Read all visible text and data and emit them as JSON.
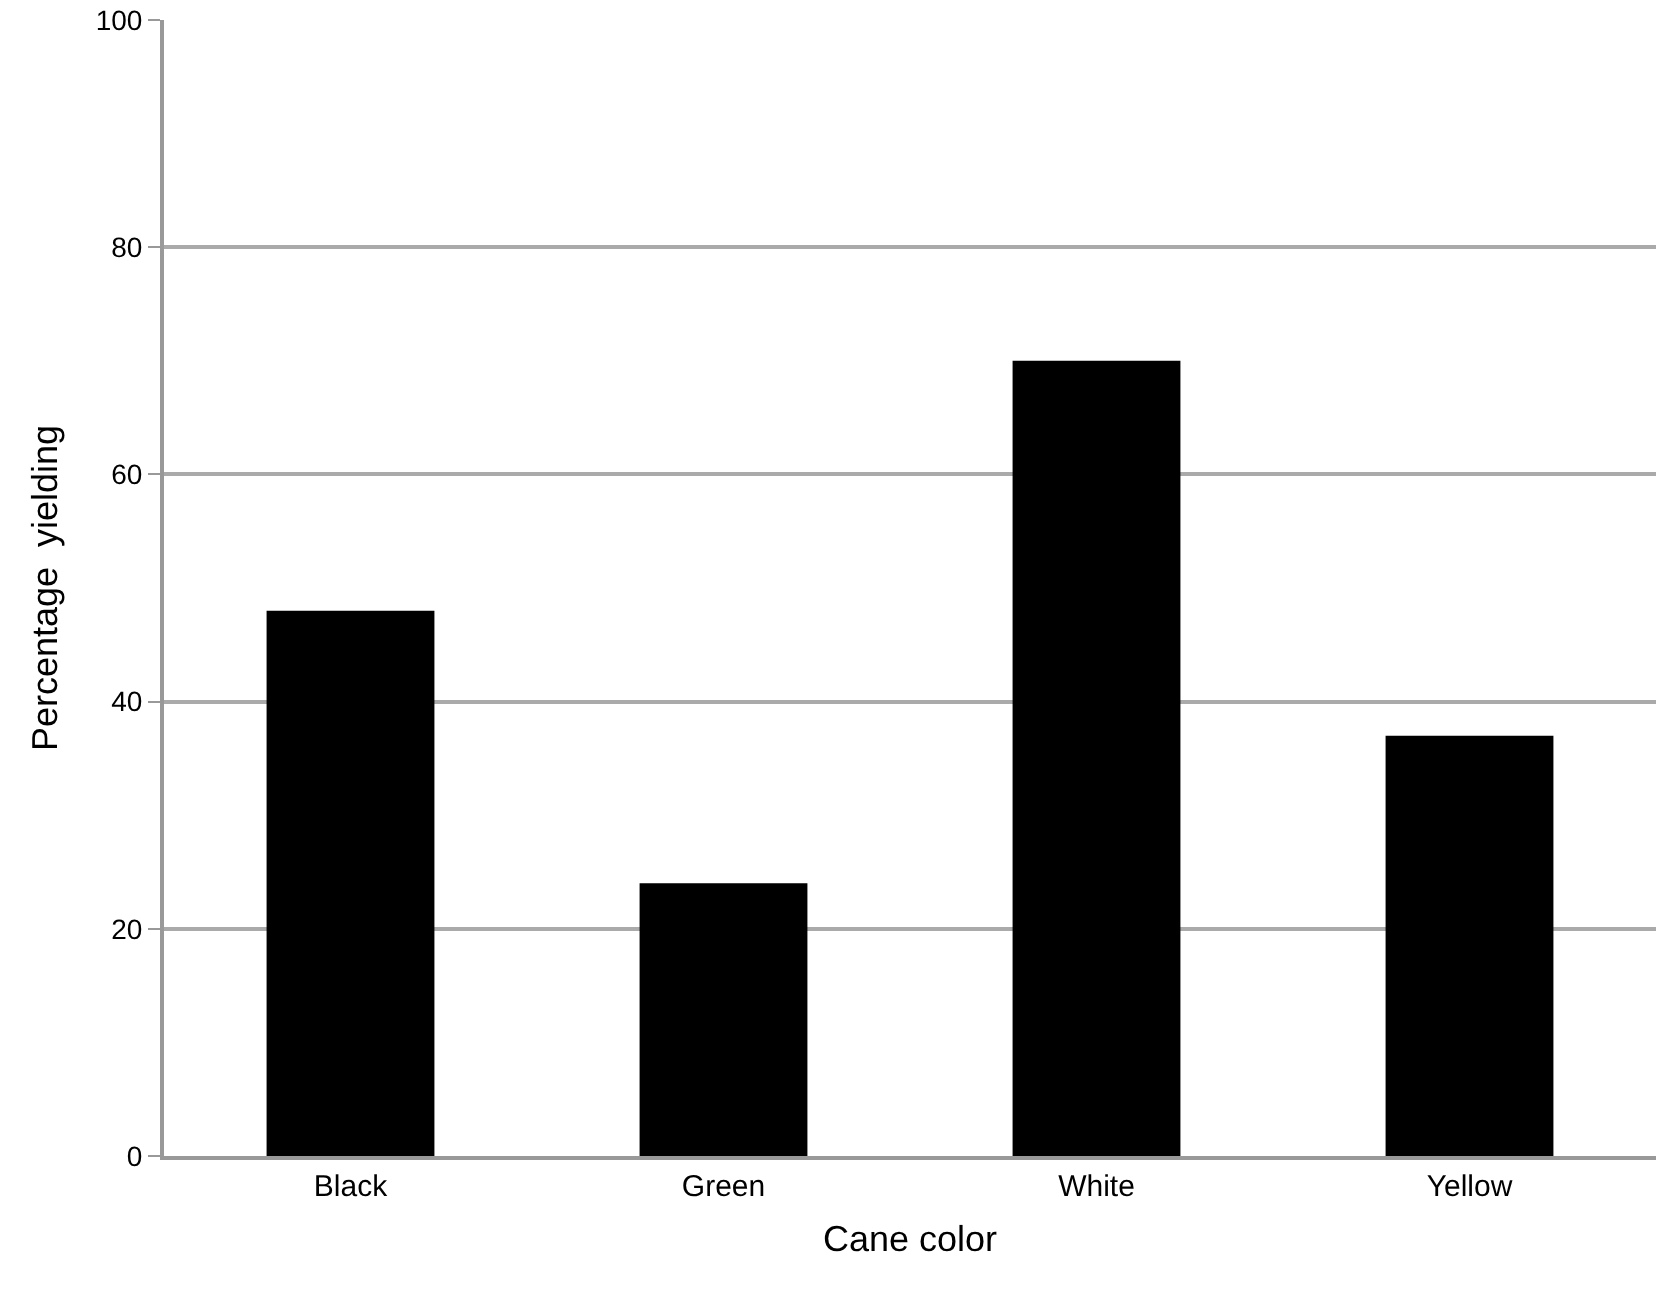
{
  "chart_data": {
    "type": "bar",
    "xlabel": "Cane color",
    "ylabel": "Percentage  yielding",
    "categories": [
      "Black",
      "Green",
      "White",
      "Yellow"
    ],
    "values": [
      48,
      24,
      70,
      37
    ],
    "color": "#000000",
    "ylim": [
      0,
      100
    ],
    "yticks": [
      0,
      20,
      40,
      60,
      80,
      100
    ],
    "grid": "y",
    "legend": false
  }
}
